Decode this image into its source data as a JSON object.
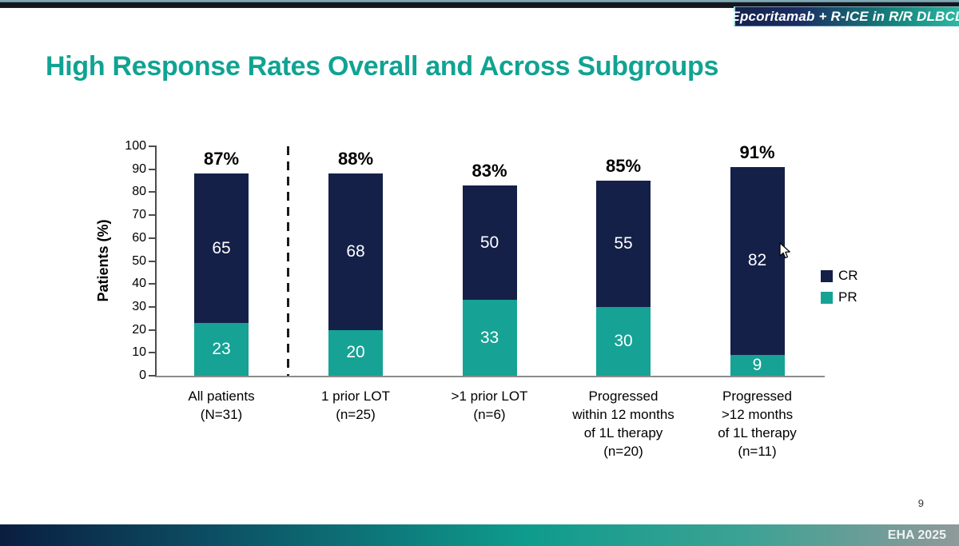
{
  "header": {
    "badge": "Epcoritamab + R-ICE in R/R DLBCL"
  },
  "title": "High Response Rates Overall and Across Subgroups",
  "chart_data": {
    "type": "bar",
    "stacked": true,
    "title": "",
    "xlabel": "",
    "ylabel": "Patients (%)",
    "ylim": [
      0,
      100
    ],
    "yticks": [
      0,
      10,
      20,
      30,
      40,
      50,
      60,
      70,
      80,
      90,
      100
    ],
    "grid": false,
    "legend_position": "right-middle",
    "categories": [
      "All patients\n(N=31)",
      "1 prior LOT\n(n=25)",
      ">1 prior LOT\n(n=6)",
      "Progressed\nwithin 12 months\nof 1L therapy\n(n=20)",
      "Progressed\n>12 months\nof 1L therapy\n(n=11)"
    ],
    "series": [
      {
        "name": "CR",
        "color": "#152048",
        "values": [
          65,
          68,
          50,
          55,
          82
        ]
      },
      {
        "name": "PR",
        "color": "#16a294",
        "values": [
          23,
          20,
          33,
          30,
          9
        ]
      }
    ],
    "total_labels": [
      "87%",
      "88%",
      "83%",
      "85%",
      "91%"
    ],
    "separator": {
      "type": "dashed-vertical-line",
      "after_category_index": 0
    }
  },
  "footer": {
    "page_number": "9",
    "conference": "EHA 2025"
  },
  "colors": {
    "accent_teal": "#10a392",
    "cr_navy": "#152048",
    "pr_teal": "#16a294"
  }
}
